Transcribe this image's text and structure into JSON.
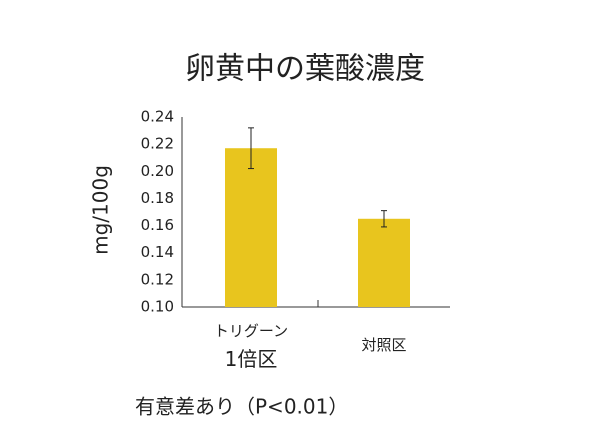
{
  "chart_data": {
    "type": "bar",
    "title": "卵黄中の葉酸濃度",
    "y_label": "mg/100g",
    "categories": [
      "トリグーン\n1倍区",
      "対照区"
    ],
    "values": [
      0.217,
      0.165
    ],
    "errors": [
      0.015,
      0.006
    ],
    "color": "#e8c51e",
    "ylim": [
      0.1,
      0.24
    ],
    "yticks": [
      {
        "value": 0.1,
        "label": "0.10"
      },
      0.12,
      0.14,
      0.16,
      0.18,
      {
        "value": 0.2,
        "label": "0.20"
      },
      0.22,
      0.24
    ],
    "grid": false,
    "annotation": "有意差あり（P<0.01）"
  }
}
